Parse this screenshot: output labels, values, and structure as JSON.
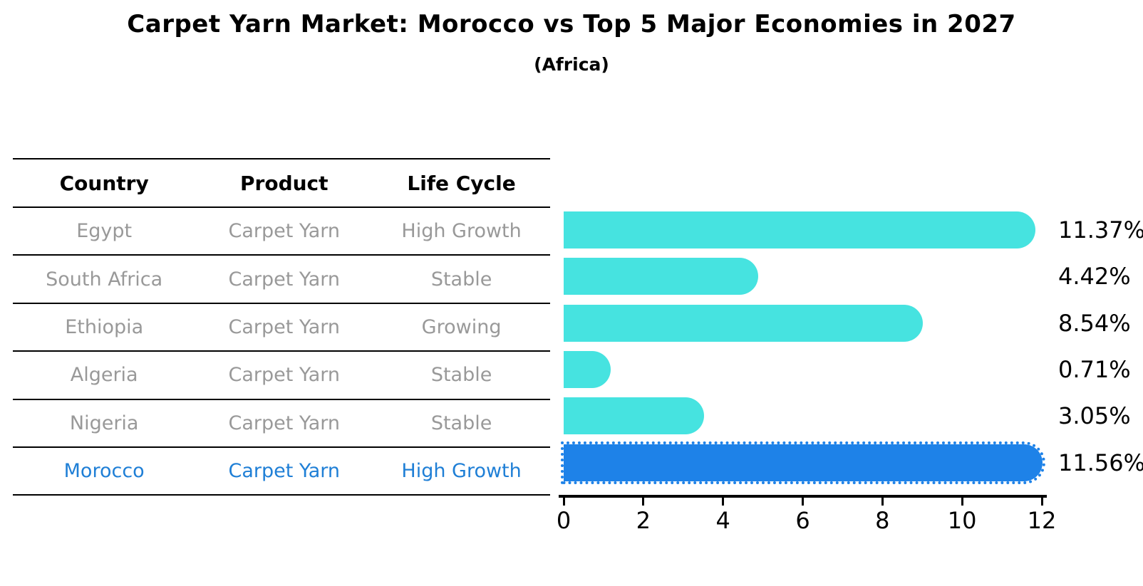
{
  "title": "Carpet Yarn Market: Morocco vs Top 5 Major Economies in 2027",
  "subtitle": "(Africa)",
  "table": {
    "headers": [
      "Country",
      "Product",
      "Life Cycle"
    ],
    "rows": [
      {
        "country": "Egypt",
        "product": "Carpet Yarn",
        "life_cycle": "High Growth",
        "highlight": false
      },
      {
        "country": "South Africa",
        "product": "Carpet Yarn",
        "life_cycle": "Stable",
        "highlight": false
      },
      {
        "country": "Ethiopia",
        "product": "Carpet Yarn",
        "life_cycle": "Growing",
        "highlight": false
      },
      {
        "country": "Algeria",
        "product": "Carpet Yarn",
        "life_cycle": "Stable",
        "highlight": false
      },
      {
        "country": "Nigeria",
        "product": "Carpet Yarn",
        "life_cycle": "Stable",
        "highlight": false
      },
      {
        "country": "Morocco",
        "product": "Carpet Yarn",
        "life_cycle": "High Growth",
        "highlight": true
      }
    ]
  },
  "chart_data": {
    "type": "bar",
    "orientation": "horizontal",
    "title": "Carpet Yarn Market: Morocco vs Top 5 Major Economies in 2027 (Africa)",
    "categories": [
      "Egypt",
      "South Africa",
      "Ethiopia",
      "Algeria",
      "Nigeria",
      "Morocco"
    ],
    "values": [
      11.37,
      4.42,
      8.54,
      0.71,
      3.05,
      11.56
    ],
    "labels": [
      "11.37%",
      "4.42%",
      "8.54%",
      "0.71%",
      "3.05%",
      "11.56%"
    ],
    "xticks": [
      0,
      2,
      4,
      6,
      8,
      10,
      12
    ],
    "xlim": [
      0,
      12
    ],
    "grid": false,
    "legend": "none",
    "bar_color": "#46E3E0",
    "highlight_color": "#1E82E8",
    "highlight_index": 5
  },
  "colors": {
    "bar_cyan": "#46E3E0",
    "bar_blue": "#1E82E8",
    "highlight_text": "#1F7FD6",
    "table_text": "#999999",
    "heading_text": "#000000",
    "line": "#000000"
  }
}
